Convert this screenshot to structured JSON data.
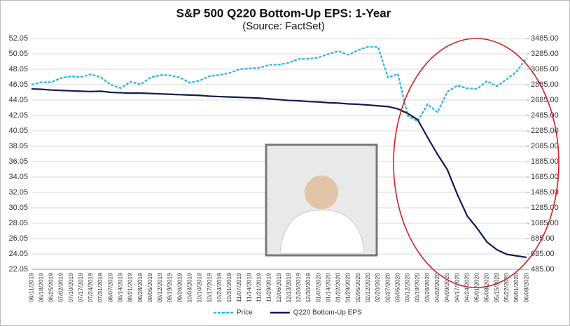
{
  "chart_data": {
    "type": "line",
    "title": "S&P 500 Q220 Bottom-Up EPS: 1-Year",
    "subtitle": "(Source: FactSet)",
    "categories": [
      "06/11/2019",
      "06/18/2019",
      "06/25/2019",
      "07/02/2019",
      "07/10/2019",
      "07/17/2019",
      "07/24/2019",
      "07/31/2019",
      "08/07/2019",
      "08/14/2019",
      "08/21/2019",
      "08/28/2019",
      "09/05/2019",
      "09/12/2019",
      "09/19/2019",
      "09/26/2019",
      "10/03/2019",
      "10/10/2019",
      "10/17/2019",
      "10/24/2019",
      "10/31/2019",
      "11/07/2019",
      "11/14/2019",
      "11/21/2019",
      "11/29/2019",
      "12/06/2019",
      "12/13/2019",
      "12/20/2019",
      "12/30/2019",
      "01/07/2020",
      "01/14/2020",
      "01/22/2020",
      "01/29/2020",
      "02/05/2020",
      "02/12/2020",
      "02/20/2020",
      "02/27/2020",
      "03/05/2020",
      "03/12/2020",
      "03/19/2020",
      "03/26/2020",
      "04/02/2020",
      "04/09/2020",
      "04/17/2020",
      "04/24/2020",
      "05/01/2020",
      "05/08/2020",
      "05/15/2020",
      "05/22/2020",
      "06/01/2020",
      "06/08/2020"
    ],
    "series": [
      {
        "name": "Price",
        "color": "#2bb3e3",
        "style": "dashed",
        "axis": "y2",
        "values": [
          2885,
          2917,
          2917,
          2973,
          2993,
          2984,
          3019,
          2980,
          2883,
          2840,
          2924,
          2887,
          2976,
          3009,
          3006,
          2977,
          2910,
          2938,
          2997,
          3010,
          3037,
          3085,
          3096,
          3103,
          3141,
          3146,
          3169,
          3221,
          3221,
          3238,
          3283,
          3321,
          3273,
          3334,
          3379,
          3373,
          2978,
          3024,
          2481,
          2409,
          2630,
          2527,
          2790,
          2875,
          2837,
          2831,
          2930,
          2864,
          2955,
          3056,
          3232
        ]
      },
      {
        "name": "Q220 Bottom-Up EPS",
        "color": "#0f1c4d",
        "style": "solid",
        "values": [
          45.5,
          45.45,
          45.35,
          45.3,
          45.25,
          45.2,
          45.15,
          45.2,
          45.05,
          45.0,
          44.95,
          44.95,
          44.9,
          44.85,
          44.8,
          44.75,
          44.7,
          44.65,
          44.55,
          44.5,
          44.45,
          44.4,
          44.35,
          44.3,
          44.2,
          44.1,
          44.0,
          43.95,
          43.85,
          43.8,
          43.7,
          43.65,
          43.55,
          43.5,
          43.4,
          43.3,
          43.2,
          42.9,
          42.3,
          41.5,
          39.2,
          37.0,
          35.0,
          31.8,
          29.0,
          27.4,
          25.6,
          24.6,
          24.0,
          23.8,
          23.6
        ]
      }
    ],
    "ylim": [
      22.05,
      52.05
    ],
    "yticks": [
      22.05,
      24.05,
      26.05,
      28.05,
      30.05,
      32.05,
      34.05,
      36.05,
      38.05,
      40.05,
      42.05,
      44.05,
      46.05,
      48.05,
      50.05,
      52.05
    ],
    "y2lim": [
      485,
      3485
    ],
    "y2ticks": [
      {
        "value": 485,
        "label": "485.00"
      },
      {
        "value": 685,
        "label": "685.00"
      },
      {
        "value": 885,
        "label": "885.00"
      },
      {
        "value": 1085,
        "label": "1085.00"
      },
      {
        "value": 1285,
        "label": "1285.00"
      },
      {
        "value": 1485,
        "label": "1485.00"
      },
      {
        "value": 1685,
        "label": "1685.00"
      },
      {
        "value": 1885,
        "label": "1885.00"
      },
      {
        "value": 2085,
        "label": "2085.00"
      },
      {
        "value": 2285,
        "label": "2285.00"
      },
      {
        "value": 2485,
        "label": "2485.00"
      },
      {
        "value": 2685,
        "label": "2685.00"
      },
      {
        "value": 2885,
        "label": "2885.00"
      },
      {
        "value": 3085,
        "label": "3085.00"
      },
      {
        "value": 3285,
        "label": "3285.00"
      },
      {
        "value": 3485,
        "label": "3485.00"
      }
    ],
    "grid": true,
    "legend": "bottom"
  }
}
